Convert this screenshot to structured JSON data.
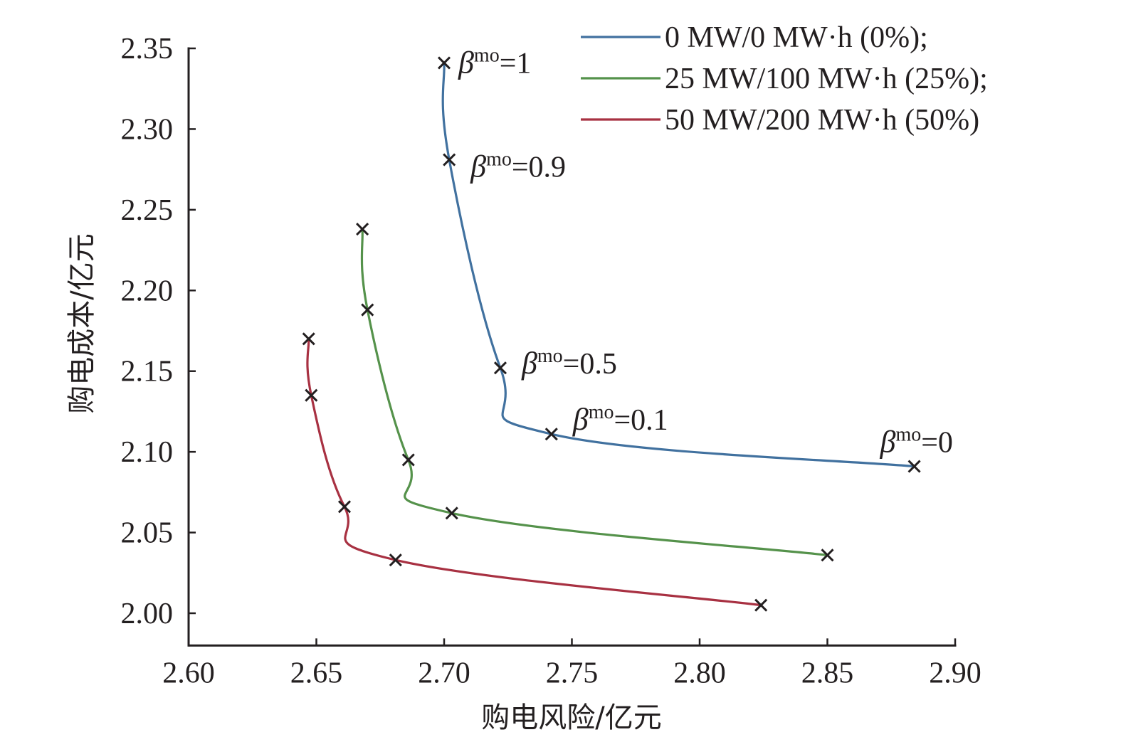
{
  "chart_data": {
    "type": "line",
    "title": "",
    "xlabel": "购电风险/亿元",
    "ylabel": "购电成本/亿元",
    "xlim": [
      2.6,
      2.9
    ],
    "ylim": [
      1.98,
      2.35
    ],
    "xticks": [
      "2.60",
      "2.65",
      "2.70",
      "2.75",
      "2.80",
      "2.85",
      "2.90"
    ],
    "yticks": [
      "2.00",
      "2.05",
      "2.10",
      "2.15",
      "2.20",
      "2.25",
      "2.30",
      "2.35"
    ],
    "grid": false,
    "legend_position": "top-right",
    "marker": "x",
    "series": [
      {
        "name": "0 MW/0 MW·h (0%);",
        "color": "#41719f",
        "points": [
          {
            "x": 2.7,
            "y": 2.341
          },
          {
            "x": 2.702,
            "y": 2.281
          },
          {
            "x": 2.722,
            "y": 2.152
          },
          {
            "x": 2.742,
            "y": 2.111
          },
          {
            "x": 2.884,
            "y": 2.091
          }
        ]
      },
      {
        "name": "25 MW/100 MW·h (25%);",
        "color": "#55924b",
        "points": [
          {
            "x": 2.668,
            "y": 2.238
          },
          {
            "x": 2.67,
            "y": 2.188
          },
          {
            "x": 2.686,
            "y": 2.095
          },
          {
            "x": 2.703,
            "y": 2.062
          },
          {
            "x": 2.85,
            "y": 2.036
          }
        ]
      },
      {
        "name": "50 MW/200 MW·h (50%)",
        "color": "#a83142",
        "points": [
          {
            "x": 2.647,
            "y": 2.17
          },
          {
            "x": 2.648,
            "y": 2.135
          },
          {
            "x": 2.661,
            "y": 2.066
          },
          {
            "x": 2.681,
            "y": 2.033
          },
          {
            "x": 2.824,
            "y": 2.005
          }
        ]
      }
    ],
    "annotations": [
      {
        "beta": "β",
        "sup": "mo",
        "value": "=1",
        "series": 0,
        "point": 0
      },
      {
        "beta": "β",
        "sup": "mo",
        "value": "=0.9",
        "series": 0,
        "point": 1
      },
      {
        "beta": "β",
        "sup": "mo",
        "value": "=0.5",
        "series": 0,
        "point": 2
      },
      {
        "beta": "β",
        "sup": "mo",
        "value": "=0.1",
        "series": 0,
        "point": 3
      },
      {
        "beta": "β",
        "sup": "mo",
        "value": "=0",
        "series": 0,
        "point": 4
      }
    ]
  }
}
